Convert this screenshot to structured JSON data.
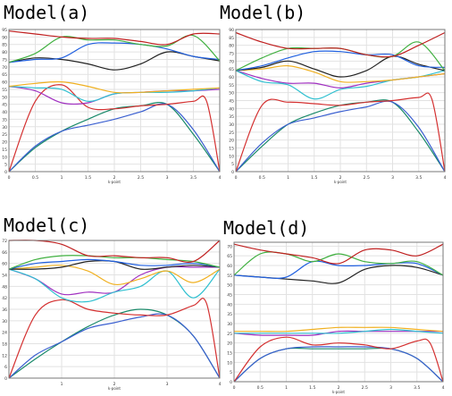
{
  "chart_data": [
    {
      "type": "line",
      "title": "Model(a)",
      "xlabel": "k-point",
      "xlim": [
        0,
        4
      ],
      "ylim": [
        0,
        95
      ],
      "xticks": [
        0,
        0.5,
        1,
        1.5,
        2,
        2.5,
        3,
        3.5,
        4
      ],
      "xtick_labels": [
        "0",
        "0.5",
        "1",
        "1.5",
        "2",
        "2.5",
        "3",
        "3.5",
        "4"
      ],
      "yticks": [
        0,
        5,
        10,
        15,
        20,
        25,
        30,
        35,
        40,
        45,
        50,
        55,
        60,
        65,
        70,
        75,
        80,
        85,
        90,
        95
      ],
      "ytick_labels": [
        "0",
        "5",
        "10",
        "15",
        "20",
        "25",
        "30",
        "35",
        "40",
        "45",
        "50",
        "55",
        "60",
        "65",
        "70",
        "75",
        "80",
        "85",
        "90",
        "95"
      ],
      "grid": true,
      "series": [
        {
          "color": "#1a8a6a",
          "x": [
            0,
            0.5,
            1,
            1.5,
            2,
            2.5,
            3,
            3.5,
            4
          ],
          "y": [
            0,
            16,
            27,
            35,
            42,
            44,
            45,
            25,
            0
          ]
        },
        {
          "color": "#3a5fd0",
          "x": [
            0,
            0.5,
            1,
            1.5,
            2,
            2.5,
            3,
            3.5,
            4
          ],
          "y": [
            0,
            17,
            27,
            31,
            35,
            40,
            45,
            28,
            0
          ]
        },
        {
          "color": "#d43030",
          "x": [
            0,
            0.5,
            1,
            1.5,
            2,
            2.5,
            3,
            3.5,
            3.75,
            4
          ],
          "y": [
            0,
            47,
            58,
            43,
            42,
            44,
            45,
            47,
            47,
            0
          ]
        },
        {
          "color": "#a030c0",
          "x": [
            0,
            0.5,
            1,
            1.5,
            2,
            2.5,
            3,
            3.5,
            4
          ],
          "y": [
            57,
            54,
            46,
            46,
            52,
            53,
            54,
            54,
            55
          ]
        },
        {
          "color": "#30c0d0",
          "x": [
            0,
            0.5,
            1,
            1.5,
            2,
            2.5,
            3,
            3.5,
            4
          ],
          "y": [
            57,
            56,
            55,
            47,
            52,
            53,
            53,
            54,
            56
          ]
        },
        {
          "color": "#f0b020",
          "x": [
            0,
            0.5,
            1,
            1.5,
            2,
            2.5,
            3,
            3.5,
            4
          ],
          "y": [
            57,
            59,
            60,
            57,
            53,
            53,
            54,
            55,
            56
          ]
        },
        {
          "color": "#222222",
          "x": [
            0,
            0.5,
            1,
            1.5,
            2,
            2.5,
            3,
            3.5,
            4
          ],
          "y": [
            73,
            76,
            75,
            72,
            68,
            72,
            80,
            77,
            74
          ]
        },
        {
          "color": "#2060e0",
          "x": [
            0,
            0.5,
            1,
            1.5,
            2,
            2.5,
            3,
            3.5,
            4
          ],
          "y": [
            73,
            75,
            76,
            85,
            86,
            85,
            82,
            77,
            75
          ]
        },
        {
          "color": "#40b040",
          "x": [
            0,
            0.5,
            1,
            1.5,
            2,
            2.5,
            3,
            3.5,
            4
          ],
          "y": [
            73,
            79,
            90,
            88,
            88,
            85,
            84,
            91,
            74
          ]
        },
        {
          "color": "#c02020",
          "x": [
            0,
            0.5,
            1,
            1.5,
            2,
            2.5,
            3,
            3.5,
            4
          ],
          "y": [
            94,
            92,
            90,
            89,
            89,
            87,
            85,
            92,
            92
          ]
        }
      ]
    },
    {
      "type": "line",
      "title": "Model(b)",
      "xlabel": "k-point",
      "xlim": [
        0,
        4
      ],
      "ylim": [
        0,
        90
      ],
      "xticks": [
        0,
        0.5,
        1,
        1.5,
        2,
        2.5,
        3,
        3.5,
        4
      ],
      "xtick_labels": [
        "0",
        "0.5",
        "1",
        "1.5",
        "2",
        "2.5",
        "3",
        "3.5",
        "4"
      ],
      "yticks": [
        0,
        5,
        10,
        15,
        20,
        25,
        30,
        35,
        40,
        45,
        50,
        55,
        60,
        65,
        70,
        75,
        80,
        85,
        90
      ],
      "ytick_labels": [
        "0",
        "5",
        "10",
        "15",
        "20",
        "25",
        "30",
        "35",
        "40",
        "45",
        "50",
        "55",
        "60",
        "65",
        "70",
        "75",
        "80",
        "85",
        "90"
      ],
      "grid": true,
      "series": [
        {
          "color": "#1a8a6a",
          "x": [
            0,
            0.5,
            1,
            1.5,
            2,
            2.5,
            3,
            3.5,
            4
          ],
          "y": [
            0,
            16,
            30,
            37,
            42,
            44,
            44,
            25,
            0
          ]
        },
        {
          "color": "#3a5fd0",
          "x": [
            0,
            0.5,
            1,
            1.5,
            2,
            2.5,
            3,
            3.5,
            4
          ],
          "y": [
            0,
            18,
            30,
            34,
            38,
            41,
            44,
            28,
            0
          ]
        },
        {
          "color": "#d43030",
          "x": [
            0,
            0.5,
            1,
            1.5,
            2,
            2.5,
            3,
            3.5,
            3.75,
            4
          ],
          "y": [
            0,
            42,
            44,
            43,
            42,
            44,
            45,
            47,
            46,
            0
          ]
        },
        {
          "color": "#a030c0",
          "x": [
            0,
            0.5,
            1,
            1.5,
            2,
            2.5,
            3,
            3.5,
            4
          ],
          "y": [
            64,
            59,
            56,
            56,
            53,
            56,
            58,
            60,
            62
          ]
        },
        {
          "color": "#30c0d0",
          "x": [
            0,
            0.5,
            1,
            1.5,
            2,
            2.5,
            3,
            3.5,
            4
          ],
          "y": [
            64,
            57,
            55,
            46,
            52,
            54,
            58,
            60,
            64
          ]
        },
        {
          "color": "#f0b020",
          "x": [
            0,
            0.5,
            1,
            1.5,
            2,
            2.5,
            3,
            3.5,
            4
          ],
          "y": [
            64,
            65,
            67,
            63,
            57,
            57,
            58,
            60,
            62
          ]
        },
        {
          "color": "#222222",
          "x": [
            0,
            0.5,
            1,
            1.5,
            2,
            2.5,
            3,
            3.5,
            4
          ],
          "y": [
            64,
            66,
            70,
            65,
            60,
            64,
            73,
            68,
            64
          ]
        },
        {
          "color": "#2060e0",
          "x": [
            0,
            0.5,
            1,
            1.5,
            2,
            2.5,
            3,
            3.5,
            4
          ],
          "y": [
            64,
            67,
            72,
            76,
            76,
            74,
            74,
            67,
            66
          ]
        },
        {
          "color": "#40b040",
          "x": [
            0,
            0.5,
            1,
            1.5,
            2,
            2.5,
            3,
            3.5,
            4
          ],
          "y": [
            64,
            72,
            78,
            78,
            78,
            74,
            73,
            82,
            64
          ]
        },
        {
          "color": "#c02020",
          "x": [
            0,
            0.5,
            1,
            1.5,
            2,
            2.5,
            3,
            3.5,
            4
          ],
          "y": [
            88,
            82,
            78,
            78,
            78,
            74,
            73,
            80,
            88
          ]
        }
      ]
    },
    {
      "type": "line",
      "title": "Model(c)",
      "xlabel": "k-point",
      "xlim": [
        0,
        4
      ],
      "ylim": [
        0,
        72
      ],
      "xticks": [
        1,
        2,
        3,
        4
      ],
      "xtick_labels": [
        "1",
        "2",
        "3",
        "4"
      ],
      "yticks": [
        0,
        6,
        12,
        18,
        24,
        30,
        36,
        42,
        48,
        54,
        60,
        66,
        72
      ],
      "ytick_labels": [
        "0",
        "6",
        "12",
        "18",
        "24",
        "30",
        "36",
        "42",
        "48",
        "54",
        "60",
        "66",
        "72"
      ],
      "grid": true,
      "series": [
        {
          "color": "#1a8a6a",
          "x": [
            0,
            0.5,
            1,
            1.5,
            2,
            2.5,
            3,
            3.5,
            4
          ],
          "y": [
            0,
            10,
            19,
            27,
            33,
            36,
            33,
            22,
            0
          ]
        },
        {
          "color": "#3a5fd0",
          "x": [
            0,
            0.5,
            1,
            1.5,
            2,
            2.5,
            3,
            3.5,
            4
          ],
          "y": [
            0,
            12,
            19,
            26,
            29,
            32,
            33,
            22,
            0
          ]
        },
        {
          "color": "#d43030",
          "x": [
            0,
            0.5,
            1,
            1.5,
            2,
            2.5,
            3,
            3.5,
            3.75,
            4
          ],
          "y": [
            0,
            33,
            41,
            36,
            34,
            33,
            33,
            38,
            39,
            0
          ]
        },
        {
          "color": "#a030c0",
          "x": [
            0,
            0.5,
            1,
            1.5,
            2,
            2.5,
            3,
            3.5,
            4
          ],
          "y": [
            57,
            52,
            44,
            45,
            45,
            54,
            58,
            58,
            58
          ]
        },
        {
          "color": "#30c0d0",
          "x": [
            0,
            0.5,
            1,
            1.5,
            2,
            2.5,
            3,
            3.5,
            4
          ],
          "y": [
            57,
            52,
            42,
            40,
            45,
            48,
            56,
            42,
            57
          ]
        },
        {
          "color": "#f0b020",
          "x": [
            0,
            0.5,
            1,
            1.5,
            2,
            2.5,
            3,
            3.5,
            4
          ],
          "y": [
            57,
            58,
            59,
            56,
            49,
            52,
            56,
            50,
            57
          ]
        },
        {
          "color": "#222222",
          "x": [
            0,
            0.5,
            1,
            1.5,
            2,
            2.5,
            3,
            3.5,
            4
          ],
          "y": [
            57,
            57,
            58,
            61,
            61,
            57,
            58,
            59,
            58
          ]
        },
        {
          "color": "#2060e0",
          "x": [
            0,
            0.5,
            1,
            1.5,
            2,
            2.5,
            3,
            3.5,
            4
          ],
          "y": [
            57,
            60,
            61,
            62,
            61,
            59,
            59,
            60,
            58
          ]
        },
        {
          "color": "#40b040",
          "x": [
            0,
            0.5,
            1,
            1.5,
            2,
            2.5,
            3,
            3.5,
            4
          ],
          "y": [
            57,
            62,
            64,
            64,
            63,
            63,
            62,
            61,
            58
          ]
        },
        {
          "color": "#c02020",
          "x": [
            0,
            0.5,
            1,
            1.5,
            2,
            2.5,
            3,
            3.5,
            4
          ],
          "y": [
            72,
            72,
            70,
            64,
            64,
            63,
            63,
            61,
            72
          ]
        }
      ]
    },
    {
      "type": "line",
      "title": "Model(d)",
      "xlabel": "k-point",
      "xlim": [
        0,
        4
      ],
      "ylim": [
        0,
        72
      ],
      "xticks": [
        0,
        0.5,
        1,
        1.5,
        2,
        2.5,
        3,
        3.5,
        4
      ],
      "xtick_labels": [
        "0",
        "0.5",
        "1",
        "1.5",
        "2",
        "2.5",
        "3",
        "3.5",
        "4"
      ],
      "yticks": [
        0,
        5,
        10,
        15,
        20,
        25,
        30,
        35,
        40,
        45,
        50,
        55,
        60,
        65,
        70
      ],
      "ytick_labels": [
        "0",
        "5",
        "10",
        "15",
        "20",
        "25",
        "30",
        "35",
        "40",
        "45",
        "50",
        "55",
        "60",
        "65",
        "70"
      ],
      "grid": true,
      "series": [
        {
          "color": "#1a8a6a",
          "x": [
            0,
            0.5,
            1,
            1.5,
            2,
            2.5,
            3,
            3.5,
            4
          ],
          "y": [
            0,
            12,
            17,
            17,
            17,
            17,
            17,
            12,
            0
          ]
        },
        {
          "color": "#3a5fd0",
          "x": [
            0,
            0.5,
            1,
            1.5,
            2,
            2.5,
            3,
            3.5,
            4
          ],
          "y": [
            0,
            12,
            17,
            18,
            18,
            18,
            17,
            12,
            0
          ]
        },
        {
          "color": "#d43030",
          "x": [
            0,
            0.5,
            1,
            1.5,
            2,
            2.5,
            3,
            3.5,
            3.75,
            4
          ],
          "y": [
            0,
            18,
            23,
            19,
            20,
            19,
            17,
            21,
            20,
            0
          ]
        },
        {
          "color": "#a030c0",
          "x": [
            0,
            0.5,
            1,
            1.5,
            2,
            2.5,
            3,
            3.5,
            4
          ],
          "y": [
            25,
            24,
            24,
            24,
            26,
            26,
            26,
            26,
            26
          ]
        },
        {
          "color": "#30c0d0",
          "x": [
            0,
            0.5,
            1,
            1.5,
            2,
            2.5,
            3,
            3.5,
            4
          ],
          "y": [
            25,
            25,
            25,
            25,
            25,
            26,
            27,
            26,
            25
          ]
        },
        {
          "color": "#f0b020",
          "x": [
            0,
            0.5,
            1,
            1.5,
            2,
            2.5,
            3,
            3.5,
            4
          ],
          "y": [
            26,
            26,
            26,
            27,
            28,
            28,
            28,
            27,
            26
          ]
        },
        {
          "color": "#222222",
          "x": [
            0,
            0.5,
            1,
            1.5,
            2,
            2.5,
            3,
            3.5,
            4
          ],
          "y": [
            55,
            54,
            53,
            52,
            51,
            58,
            60,
            59,
            55
          ]
        },
        {
          "color": "#2060e0",
          "x": [
            0,
            0.5,
            1,
            1.5,
            2,
            2.5,
            3,
            3.5,
            4
          ],
          "y": [
            55,
            54,
            54,
            62,
            60,
            60,
            61,
            61,
            55
          ]
        },
        {
          "color": "#40b040",
          "x": [
            0,
            0.5,
            1,
            1.5,
            2,
            2.5,
            3,
            3.5,
            4
          ],
          "y": [
            55,
            66,
            66,
            62,
            66,
            62,
            61,
            62,
            55
          ]
        },
        {
          "color": "#c02020",
          "x": [
            0,
            0.5,
            1,
            1.5,
            2,
            2.5,
            3,
            3.5,
            4
          ],
          "y": [
            71,
            68,
            66,
            64,
            61,
            68,
            68,
            65,
            71
          ]
        }
      ]
    }
  ]
}
